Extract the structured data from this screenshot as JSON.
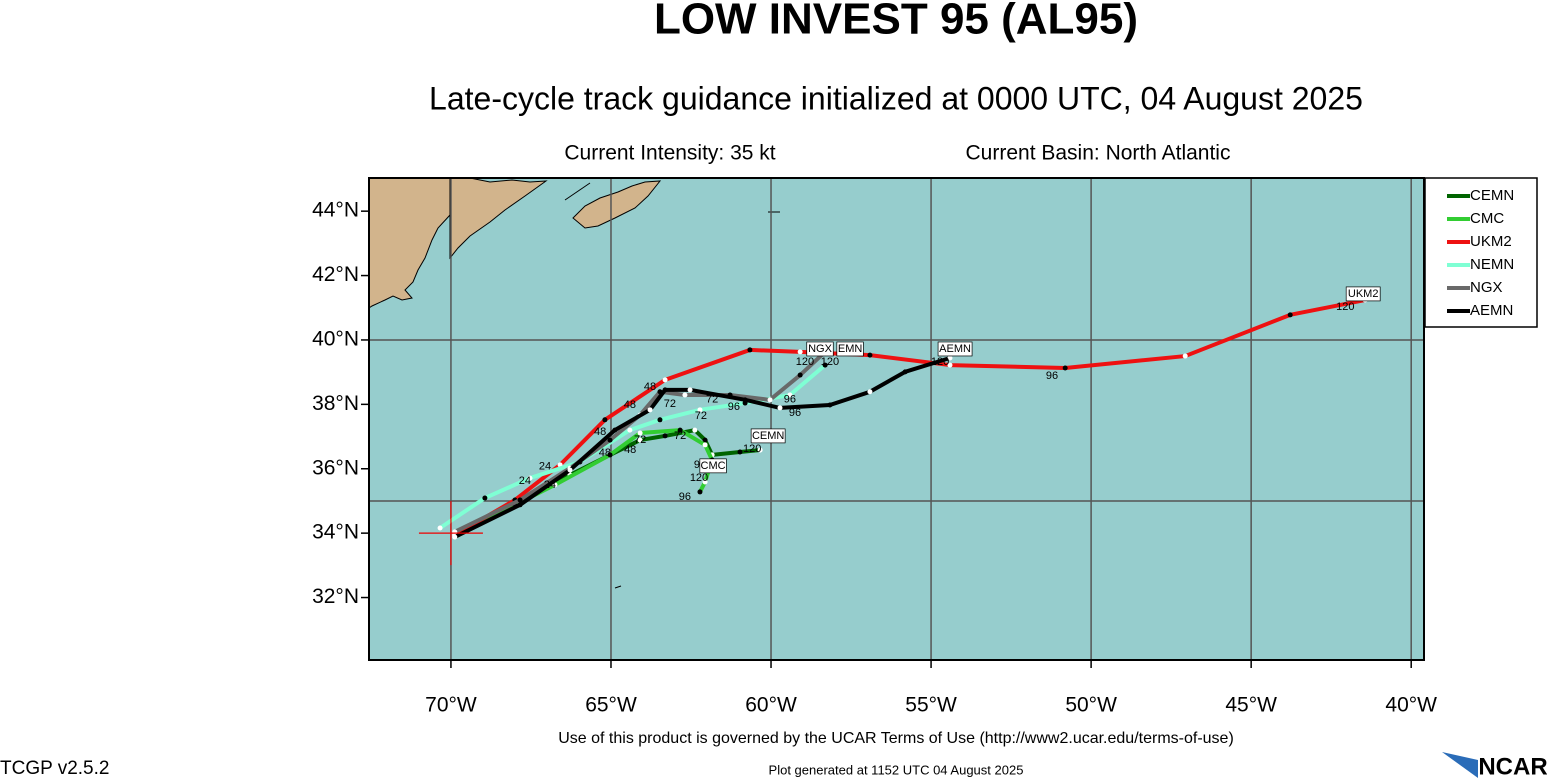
{
  "map": {
    "title": "LOW INVEST 95 (AL95)",
    "subtitle": "Late-cycle track guidance initialized at 0000 UTC, 04 August 2025",
    "intensity": "Current Intensity: 35 kt",
    "basin": "Current Basin: North Atlantic",
    "terms": "Use of this product is governed by the UCAR Terms of Use (http://www2.ucar.edu/terms-of-use)",
    "version": "TCGP v2.5.2",
    "generated": "Plot generated at 1152 UTC   04 August 2025",
    "logo": "NCAR",
    "xlim": [
      -72.56,
      -39.6
    ],
    "ylim": [
      30.06,
      45.03
    ],
    "xticks": [
      {
        "value": -70,
        "label": "70°W"
      },
      {
        "value": -65,
        "label": "65°W"
      },
      {
        "value": -60,
        "label": "60°W"
      },
      {
        "value": -55,
        "label": "55°W"
      },
      {
        "value": -50,
        "label": "50°W"
      },
      {
        "value": -45,
        "label": "45°W"
      },
      {
        "value": -40,
        "label": "40°W"
      }
    ],
    "yticks": [
      {
        "value": 32,
        "label": "32°N"
      },
      {
        "value": 34,
        "label": "34°N"
      },
      {
        "value": 36,
        "label": "36°N"
      },
      {
        "value": 38,
        "label": "38°N"
      },
      {
        "value": 40,
        "label": "40°N"
      },
      {
        "value": 42,
        "label": "42°N"
      },
      {
        "value": 44,
        "label": "44°N"
      }
    ],
    "grid_lon": [
      -70,
      -65,
      -60,
      -55,
      -50,
      -45,
      -40
    ],
    "grid_lat": [
      35,
      40
    ],
    "storm_position": {
      "lon": -70,
      "lat": 34
    },
    "tracks": [
      {
        "name": "CEMN",
        "color": "#006400",
        "lon": [
          -69.88,
          -68.0,
          -66.28,
          -65.03,
          -64.09,
          -63.31,
          -62.38,
          -62.06,
          -61.84,
          -60.97,
          -60.34
        ],
        "lat": [
          33.88,
          34.88,
          35.81,
          36.43,
          36.89,
          37.02,
          37.2,
          36.89,
          36.43,
          36.52,
          36.58
        ]
      },
      {
        "name": "CMC",
        "color": "#32cd32",
        "lon": [
          -69.88,
          -68.0,
          -66.75,
          -65.03,
          -64.09,
          -62.84,
          -62.06,
          -61.84,
          -62.06,
          -62.22
        ],
        "lat": [
          33.94,
          34.88,
          35.5,
          36.43,
          37.11,
          37.2,
          36.74,
          36.27,
          35.59,
          35.28
        ]
      },
      {
        "name": "UKM2",
        "color": "#ee1111",
        "lon": [
          -69.88,
          -68.0,
          -66.59,
          -65.19,
          -63.31,
          -60.66,
          -59.09,
          -56.91,
          -54.41,
          -50.81,
          -47.06,
          -43.78,
          -41.44
        ],
        "lat": [
          33.94,
          35.03,
          36.12,
          37.52,
          38.76,
          39.69,
          39.63,
          39.53,
          39.22,
          39.13,
          39.5,
          40.78,
          41.24
        ]
      },
      {
        "name": "NEMN",
        "color": "#7fffd4",
        "lon": [
          -70.34,
          -68.94,
          -67.53,
          -65.97,
          -64.41,
          -63.47,
          -62.22,
          -60.81,
          -59.41,
          -58.31
        ],
        "lat": [
          34.16,
          35.09,
          35.71,
          36.21,
          37.2,
          37.52,
          37.83,
          38.04,
          38.29,
          39.22
        ]
      },
      {
        "name": "NGX",
        "color": "#696969",
        "lon": [
          -69.88,
          -67.84,
          -66.28,
          -65.03,
          -64.09,
          -63.47,
          -62.69,
          -61.28,
          -60.03,
          -59.09,
          -58.31
        ],
        "lat": [
          34.04,
          35.03,
          36.02,
          36.89,
          37.67,
          38.39,
          38.29,
          38.29,
          38.14,
          38.91,
          39.63
        ]
      },
      {
        "name": "AEMN",
        "color": "#000000",
        "lon": [
          -69.88,
          -67.84,
          -66.28,
          -64.88,
          -63.78,
          -63.31,
          -62.53,
          -60.81,
          -59.72,
          -58.16,
          -56.91,
          -55.81,
          -54.41
        ],
        "lat": [
          33.88,
          34.88,
          35.96,
          37.2,
          37.83,
          38.45,
          38.45,
          38.14,
          37.89,
          37.98,
          38.39,
          39.01,
          39.44
        ]
      }
    ],
    "end_labels": [
      {
        "label": "UKM2",
        "lon": -41.5,
        "lat": 41.43
      },
      {
        "label": "AEMN",
        "lon": -54.25,
        "lat": 39.72
      },
      {
        "label": "NGX",
        "lon": -58.47,
        "lat": 39.72
      },
      {
        "label": "EMN",
        "lon": -57.53,
        "lat": 39.72
      },
      {
        "label": "CEMN",
        "lon": -60.09,
        "lat": 37.02
      },
      {
        "label": "CMC",
        "lon": -61.81,
        "lat": 36.09
      }
    ],
    "hour_labels": [
      {
        "label": "120",
        "lon": -42.06,
        "lat": 41.02
      },
      {
        "label": "96",
        "lon": -51.22,
        "lat": 38.88
      },
      {
        "label": "120",
        "lon": -54.72,
        "lat": 39.32
      },
      {
        "label": "120",
        "lon": -58.94,
        "lat": 39.32
      },
      {
        "label": "120",
        "lon": -58.16,
        "lat": 39.32
      },
      {
        "label": "96",
        "lon": -59.25,
        "lat": 37.73
      },
      {
        "label": "96",
        "lon": -59.41,
        "lat": 38.14
      },
      {
        "label": "96",
        "lon": -61.16,
        "lat": 37.92
      },
      {
        "label": "72",
        "lon": -61.84,
        "lat": 38.14
      },
      {
        "label": "72",
        "lon": -62.19,
        "lat": 37.64
      },
      {
        "label": "72",
        "lon": -63.16,
        "lat": 38.01
      },
      {
        "label": "48",
        "lon": -63.78,
        "lat": 38.54
      },
      {
        "label": "48",
        "lon": -64.41,
        "lat": 37.98
      },
      {
        "label": "48",
        "lon": -65.34,
        "lat": 37.14
      },
      {
        "label": "48",
        "lon": -65.19,
        "lat": 36.49
      },
      {
        "label": "48",
        "lon": -64.4,
        "lat": 36.58
      },
      {
        "label": "72",
        "lon": -64.09,
        "lat": 36.89
      },
      {
        "label": "72",
        "lon": -62.84,
        "lat": 37.02
      },
      {
        "label": "96",
        "lon": -62.22,
        "lat": 36.12
      },
      {
        "label": "120",
        "lon": -62.25,
        "lat": 35.71
      },
      {
        "label": "96",
        "lon": -62.69,
        "lat": 35.12
      },
      {
        "label": "120",
        "lon": -60.59,
        "lat": 36.61
      },
      {
        "label": "24",
        "lon": -67.69,
        "lat": 35.62
      },
      {
        "label": "24",
        "lon": -66.91,
        "lat": 35.5
      },
      {
        "label": "24",
        "lon": -67.06,
        "lat": 36.06
      }
    ]
  }
}
